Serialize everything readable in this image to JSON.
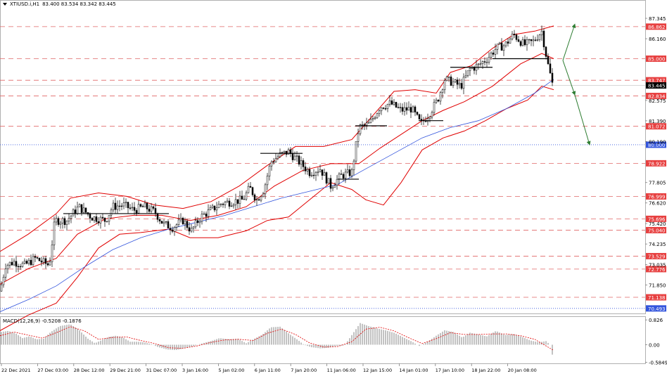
{
  "header": {
    "symbol": "XTIUSD.i,H1",
    "ohlc": "83.400 83.534 83.342 83.445"
  },
  "colors": {
    "candle": "#000000",
    "bollinger": "#e00000",
    "ma": "#3355dd",
    "resistance_line": "#e06666",
    "support_dotted": "#3355dd",
    "arrow": "#2e7d32",
    "macd_hist": "#9a9a9a",
    "macd_signal": "#e00000",
    "price_label_bg": "#e74040",
    "current_price_bg": "#000000"
  },
  "chart_data": [
    {
      "type": "candlestick",
      "title": "",
      "y_axis_ticks": [
        87.345,
        86.16,
        82.575,
        81.39,
        80.19,
        77.805,
        76.62,
        75.42,
        74.235,
        73.035,
        71.85
      ],
      "x_tick_labels": [
        "22 Dec 2021",
        "27 Dec 03:00",
        "28 Dec 12:00",
        "29 Dec 21:00",
        "31 Dec 07:00",
        "3 Jan 16:00",
        "5 Jan 02:00",
        "6 Jan 11:00",
        "7 Jan 20:00",
        "11 Jan 06:00",
        "12 Jan 15:00",
        "14 Jan 01:00",
        "17 Jan 10:00",
        "18 Jan 22:00",
        "20 Jan 08:00"
      ],
      "price_range": [
        70.2,
        88.0
      ],
      "current_price": 83.445,
      "horizontal_levels": [
        {
          "label": "86.862",
          "value": 86.862,
          "style": "dashed"
        },
        {
          "label": "85.000",
          "value": 85.0,
          "style": "dashed"
        },
        {
          "label": "83.747",
          "value": 83.747,
          "style": "dashed"
        },
        {
          "label": "82.834",
          "value": 82.834,
          "style": "dashed"
        },
        {
          "label": "81.072",
          "value": 81.072,
          "style": "dashed"
        },
        {
          "label": "80.000",
          "value": 80.0,
          "style": "dotted"
        },
        {
          "label": "78.922",
          "value": 78.922,
          "style": "dashed"
        },
        {
          "label": "76.999",
          "value": 76.999,
          "style": "dashed"
        },
        {
          "label": "75.696",
          "value": 75.696,
          "style": "dashed"
        },
        {
          "label": "75.040",
          "value": 75.04,
          "style": "dashed"
        },
        {
          "label": "73.529",
          "value": 73.529,
          "style": "dashed"
        },
        {
          "label": "72.776",
          "value": 72.776,
          "style": "dashed"
        },
        {
          "label": "71.138",
          "value": 71.138,
          "style": "dashed"
        },
        {
          "label": "70.493",
          "value": 70.493,
          "style": "dotted"
        }
      ],
      "close_path": [
        [
          0,
          71.5
        ],
        [
          8,
          73.0
        ],
        [
          20,
          73.2
        ],
        [
          35,
          73.0
        ],
        [
          50,
          73.4
        ],
        [
          70,
          73.0
        ],
        [
          78,
          75.6
        ],
        [
          95,
          75.6
        ],
        [
          112,
          76.4
        ],
        [
          130,
          75.8
        ],
        [
          150,
          75.6
        ],
        [
          160,
          76.4
        ],
        [
          175,
          76.5
        ],
        [
          190,
          76.2
        ],
        [
          205,
          76.4
        ],
        [
          220,
          76.1
        ],
        [
          232,
          75.4
        ],
        [
          245,
          75.2
        ],
        [
          260,
          75.6
        ],
        [
          272,
          75.0
        ],
        [
          285,
          75.8
        ],
        [
          300,
          76.2
        ],
        [
          315,
          76.6
        ],
        [
          330,
          76.7
        ],
        [
          345,
          76.8
        ],
        [
          355,
          77.5
        ],
        [
          365,
          76.8
        ],
        [
          375,
          77.4
        ],
        [
          385,
          79.0
        ],
        [
          398,
          79.4
        ],
        [
          410,
          79.6
        ],
        [
          425,
          79.0
        ],
        [
          440,
          78.4
        ],
        [
          455,
          78.6
        ],
        [
          470,
          77.6
        ],
        [
          485,
          78.2
        ],
        [
          500,
          78.4
        ],
        [
          510,
          81.0
        ],
        [
          525,
          81.2
        ],
        [
          540,
          82.2
        ],
        [
          555,
          82.4
        ],
        [
          570,
          82.0
        ],
        [
          585,
          82.1
        ],
        [
          598,
          81.2
        ],
        [
          610,
          81.8
        ],
        [
          622,
          82.6
        ],
        [
          632,
          83.8
        ],
        [
          645,
          83.6
        ],
        [
          655,
          83.4
        ],
        [
          668,
          84.4
        ],
        [
          680,
          84.6
        ],
        [
          692,
          85.0
        ],
        [
          705,
          85.6
        ],
        [
          718,
          85.8
        ],
        [
          730,
          86.4
        ],
        [
          745,
          85.8
        ],
        [
          758,
          86.0
        ],
        [
          770,
          86.6
        ],
        [
          778,
          84.8
        ],
        [
          787,
          83.2
        ]
      ],
      "sma_path": [
        [
          0,
          70.3
        ],
        [
          40,
          71.0
        ],
        [
          80,
          71.8
        ],
        [
          120,
          72.9
        ],
        [
          160,
          73.9
        ],
        [
          200,
          74.6
        ],
        [
          240,
          75.1
        ],
        [
          280,
          75.5
        ],
        [
          320,
          75.9
        ],
        [
          360,
          76.4
        ],
        [
          400,
          76.9
        ],
        [
          440,
          77.3
        ],
        [
          480,
          77.7
        ],
        [
          520,
          78.6
        ],
        [
          560,
          79.5
        ],
        [
          600,
          80.4
        ],
        [
          640,
          81.0
        ],
        [
          680,
          81.4
        ],
        [
          720,
          82.1
        ],
        [
          760,
          83.0
        ],
        [
          787,
          83.8
        ]
      ],
      "bollinger_mid_path": [
        [
          0,
          71.9
        ],
        [
          40,
          72.8
        ],
        [
          80,
          73.4
        ],
        [
          110,
          74.8
        ],
        [
          150,
          75.7
        ],
        [
          190,
          75.9
        ],
        [
          230,
          75.9
        ],
        [
          270,
          75.6
        ],
        [
          310,
          75.9
        ],
        [
          350,
          76.4
        ],
        [
          390,
          77.6
        ],
        [
          430,
          78.5
        ],
        [
          470,
          78.9
        ],
        [
          510,
          78.9
        ],
        [
          540,
          79.8
        ],
        [
          570,
          80.6
        ],
        [
          600,
          81.4
        ],
        [
          630,
          82.0
        ],
        [
          660,
          82.5
        ],
        [
          700,
          83.4
        ],
        [
          740,
          84.7
        ],
        [
          770,
          85.3
        ],
        [
          787,
          85.0
        ]
      ],
      "bollinger_upper_path": [
        [
          0,
          73.8
        ],
        [
          40,
          74.8
        ],
        [
          80,
          76.0
        ],
        [
          100,
          76.9
        ],
        [
          140,
          77.2
        ],
        [
          180,
          77.0
        ],
        [
          220,
          76.5
        ],
        [
          260,
          76.3
        ],
        [
          300,
          76.7
        ],
        [
          340,
          77.6
        ],
        [
          380,
          78.8
        ],
        [
          420,
          79.9
        ],
        [
          460,
          79.9
        ],
        [
          500,
          80.3
        ],
        [
          530,
          81.7
        ],
        [
          560,
          83.1
        ],
        [
          590,
          83.2
        ],
        [
          620,
          83.0
        ],
        [
          640,
          84.2
        ],
        [
          670,
          84.6
        ],
        [
          700,
          85.6
        ],
        [
          730,
          86.4
        ],
        [
          760,
          86.6
        ],
        [
          787,
          86.9
        ]
      ],
      "bollinger_lower_path": [
        [
          0,
          69.2
        ],
        [
          40,
          70.1
        ],
        [
          80,
          70.8
        ],
        [
          110,
          72.3
        ],
        [
          140,
          74.0
        ],
        [
          170,
          74.8
        ],
        [
          200,
          74.9
        ],
        [
          240,
          75.1
        ],
        [
          270,
          74.6
        ],
        [
          310,
          74.6
        ],
        [
          350,
          75.0
        ],
        [
          380,
          75.6
        ],
        [
          410,
          75.8
        ],
        [
          440,
          76.8
        ],
        [
          470,
          77.8
        ],
        [
          500,
          77.4
        ],
        [
          520,
          76.8
        ],
        [
          545,
          76.5
        ],
        [
          570,
          77.8
        ],
        [
          600,
          79.7
        ],
        [
          630,
          80.4
        ],
        [
          660,
          80.8
        ],
        [
          690,
          81.4
        ],
        [
          720,
          82.1
        ],
        [
          750,
          82.6
        ],
        [
          770,
          83.4
        ],
        [
          787,
          83.2
        ]
      ],
      "support_resistance_segments": [
        {
          "x0": 90,
          "x1": 240,
          "value": 76.0
        },
        {
          "x0": 370,
          "x1": 430,
          "value": 79.5
        },
        {
          "x0": 480,
          "x1": 510,
          "value": 78.0
        },
        {
          "x0": 505,
          "x1": 550,
          "value": 81.1
        },
        {
          "x0": 595,
          "x1": 630,
          "value": 81.4
        },
        {
          "x0": 640,
          "x1": 700,
          "value": 84.5
        },
        {
          "x0": 700,
          "x1": 780,
          "value": 85.0
        }
      ],
      "forecast_arrows": [
        {
          "from": [
            800,
            84.9
          ],
          "to": [
            817,
            87.0
          ]
        },
        {
          "from": [
            800,
            84.9
          ],
          "to": [
            817,
            82.9
          ]
        },
        {
          "from": [
            817,
            82.9
          ],
          "to": [
            838,
            80.0
          ]
        }
      ]
    },
    {
      "type": "macd",
      "title": "MACD(12,26,9) -0.5208 -0.1876",
      "y_axis_ticks": [
        0.826,
        0.0,
        -0.5849
      ],
      "y_range": [
        -0.62,
        0.9
      ],
      "histogram_profile": [
        [
          0,
          0.42
        ],
        [
          12,
          0.46
        ],
        [
          22,
          0.38
        ],
        [
          32,
          0.22
        ],
        [
          42,
          0.28
        ],
        [
          52,
          0.18
        ],
        [
          62,
          0.2
        ],
        [
          72,
          0.42
        ],
        [
          85,
          0.62
        ],
        [
          100,
          0.68
        ],
        [
          112,
          0.5
        ],
        [
          125,
          0.2
        ],
        [
          135,
          0.05
        ],
        [
          145,
          0.16
        ],
        [
          155,
          0.26
        ],
        [
          165,
          0.3
        ],
        [
          175,
          0.24
        ],
        [
          185,
          0.1
        ],
        [
          195,
          0.1
        ],
        [
          205,
          0.08
        ],
        [
          215,
          0.02
        ],
        [
          225,
          -0.08
        ],
        [
          238,
          -0.16
        ],
        [
          250,
          -0.18
        ],
        [
          262,
          -0.12
        ],
        [
          275,
          -0.05
        ],
        [
          288,
          0.05
        ],
        [
          300,
          0.12
        ],
        [
          312,
          0.22
        ],
        [
          325,
          0.18
        ],
        [
          338,
          0.2
        ],
        [
          350,
          0.05
        ],
        [
          360,
          0.18
        ],
        [
          372,
          0.32
        ],
        [
          385,
          0.58
        ],
        [
          398,
          0.6
        ],
        [
          410,
          0.38
        ],
        [
          422,
          0.18
        ],
        [
          432,
          0.0
        ],
        [
          442,
          -0.08
        ],
        [
          455,
          -0.12
        ],
        [
          468,
          -0.1
        ],
        [
          478,
          -0.04
        ],
        [
          490,
          -0.02
        ],
        [
          500,
          0.32
        ],
        [
          512,
          0.72
        ],
        [
          524,
          0.62
        ],
        [
          536,
          0.54
        ],
        [
          548,
          0.48
        ],
        [
          560,
          0.4
        ],
        [
          572,
          0.26
        ],
        [
          584,
          0.12
        ],
        [
          596,
          -0.04
        ],
        [
          608,
          0.1
        ],
        [
          620,
          0.3
        ],
        [
          632,
          0.48
        ],
        [
          645,
          0.42
        ],
        [
          657,
          0.24
        ],
        [
          668,
          0.4
        ],
        [
          680,
          0.34
        ],
        [
          692,
          0.28
        ],
        [
          705,
          0.46
        ],
        [
          718,
          0.32
        ],
        [
          730,
          0.36
        ],
        [
          742,
          0.26
        ],
        [
          754,
          0.14
        ],
        [
          766,
          0.08
        ],
        [
          776,
          0.12
        ],
        [
          782,
          0.0
        ],
        [
          787,
          -0.55
        ]
      ],
      "signal_profile": [
        [
          0,
          0.3
        ],
        [
          20,
          0.42
        ],
        [
          40,
          0.32
        ],
        [
          60,
          0.22
        ],
        [
          80,
          0.4
        ],
        [
          100,
          0.6
        ],
        [
          120,
          0.46
        ],
        [
          140,
          0.18
        ],
        [
          160,
          0.24
        ],
        [
          180,
          0.26
        ],
        [
          200,
          0.14
        ],
        [
          220,
          0.04
        ],
        [
          240,
          -0.1
        ],
        [
          260,
          -0.12
        ],
        [
          280,
          -0.04
        ],
        [
          300,
          0.08
        ],
        [
          320,
          0.16
        ],
        [
          340,
          0.18
        ],
        [
          360,
          0.14
        ],
        [
          380,
          0.38
        ],
        [
          400,
          0.52
        ],
        [
          420,
          0.34
        ],
        [
          440,
          0.06
        ],
        [
          460,
          -0.08
        ],
        [
          480,
          -0.06
        ],
        [
          500,
          0.1
        ],
        [
          520,
          0.52
        ],
        [
          540,
          0.58
        ],
        [
          560,
          0.46
        ],
        [
          580,
          0.24
        ],
        [
          600,
          0.04
        ],
        [
          620,
          0.2
        ],
        [
          640,
          0.4
        ],
        [
          660,
          0.34
        ],
        [
          680,
          0.34
        ],
        [
          700,
          0.36
        ],
        [
          720,
          0.36
        ],
        [
          740,
          0.3
        ],
        [
          760,
          0.18
        ],
        [
          787,
          -0.19
        ]
      ]
    }
  ]
}
